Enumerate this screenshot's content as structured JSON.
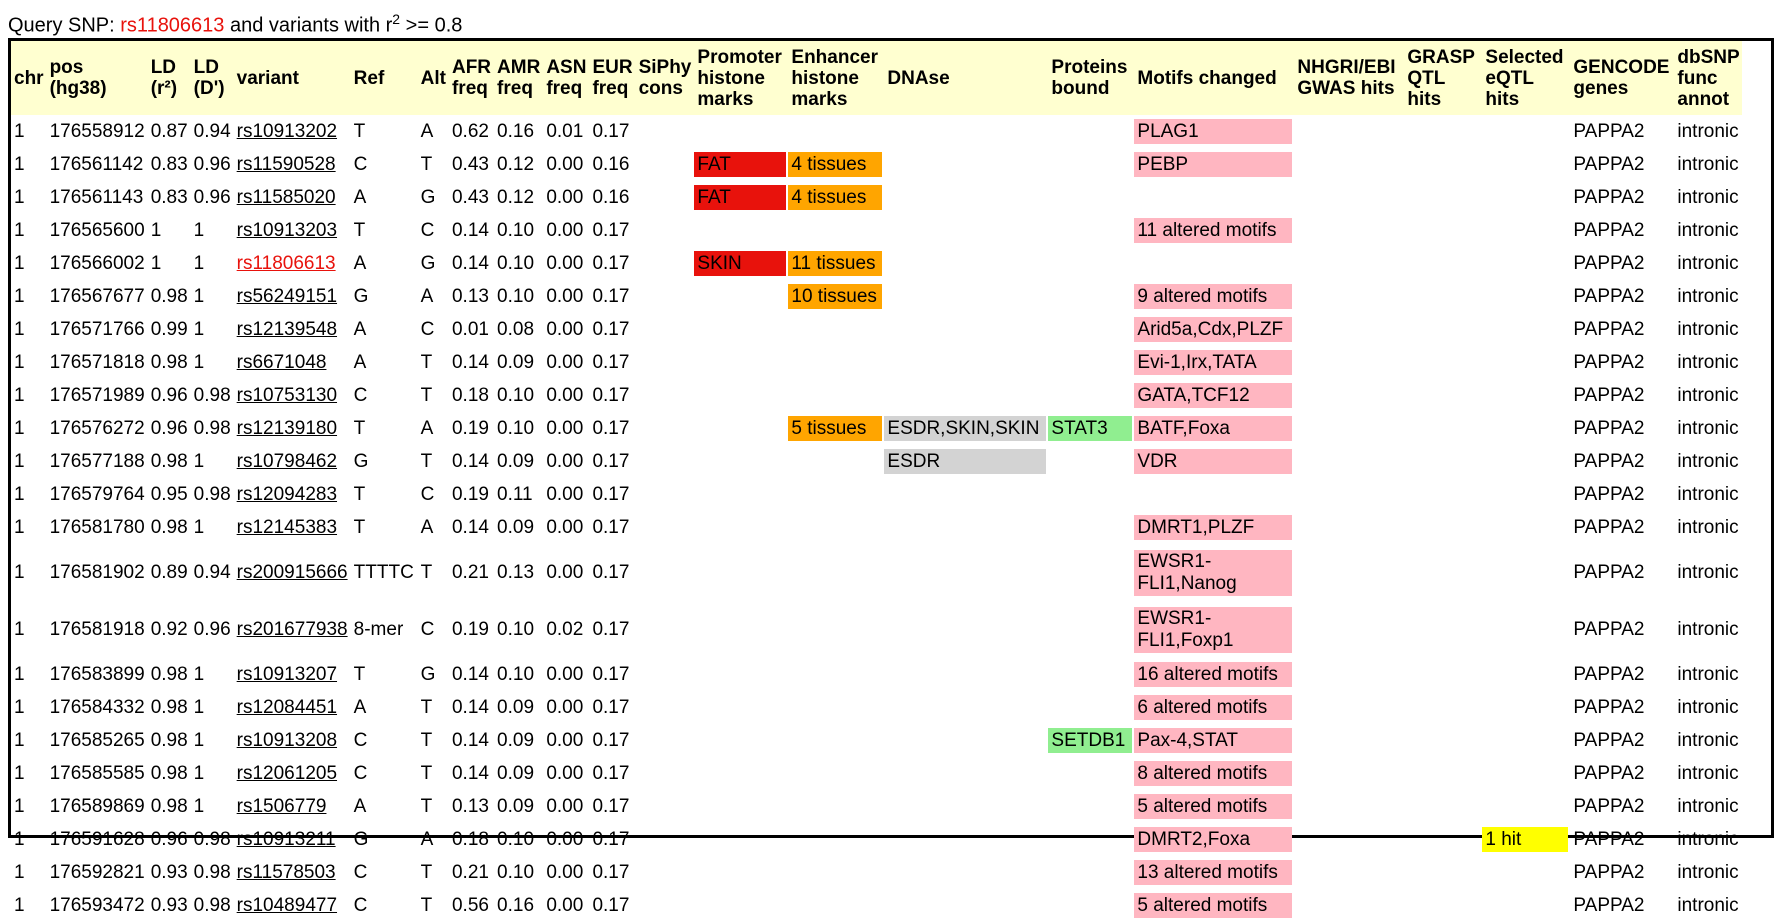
{
  "title": {
    "prefix": "Query SNP: ",
    "query": "rs11806613",
    "middle": " and variants with r",
    "sup": "2",
    "suffix": " >= 0.8"
  },
  "colors": {
    "red": "#e8120c",
    "orange": "#ffa500",
    "gray": "#d3d3d3",
    "green": "#90ee90",
    "pink": "#ffb6c1",
    "yellow": "#ffff00",
    "header_bg": "#ffffd0"
  },
  "headers": [
    "chr",
    "pos (hg38)",
    "LD (r²)",
    "LD (D')",
    "variant",
    "Ref",
    "Alt",
    "AFR freq",
    "AMR freq",
    "ASN freq",
    "EUR freq",
    "SiPhy cons",
    "Promoter histone marks",
    "Enhancer histone marks",
    "DNAse",
    "Proteins bound",
    "Motifs changed",
    "NHGRI/EBI GWAS hits",
    "GRASP QTL hits",
    "Selected eQTL hits",
    "GENCODE genes",
    "dbSNP func annot"
  ],
  "rows": [
    {
      "chr": "1",
      "pos": "176558912",
      "r2": "0.87",
      "d": "0.94",
      "variant": "rs10913202",
      "ref": "T",
      "alt": "A",
      "afr": "0.62",
      "amr": "0.16",
      "asn": "0.01",
      "eur": "0.17",
      "siphy": "",
      "promoter": "",
      "enhancer": "",
      "dnase": "",
      "proteins": "",
      "motifs": "PLAG1",
      "gwas": "",
      "grasp": "",
      "eqtl": "",
      "gene": "PAPPA2",
      "func": "intronic"
    },
    {
      "chr": "1",
      "pos": "176561142",
      "r2": "0.83",
      "d": "0.96",
      "variant": "rs11590528",
      "ref": "C",
      "alt": "T",
      "afr": "0.43",
      "amr": "0.12",
      "asn": "0.00",
      "eur": "0.16",
      "siphy": "",
      "promoter": "FAT",
      "enhancer": "4 tissues",
      "dnase": "",
      "proteins": "",
      "motifs": "PEBP",
      "gwas": "",
      "grasp": "",
      "eqtl": "",
      "gene": "PAPPA2",
      "func": "intronic"
    },
    {
      "chr": "1",
      "pos": "176561143",
      "r2": "0.83",
      "d": "0.96",
      "variant": "rs11585020",
      "ref": "A",
      "alt": "G",
      "afr": "0.43",
      "amr": "0.12",
      "asn": "0.00",
      "eur": "0.16",
      "siphy": "",
      "promoter": "FAT",
      "enhancer": "4 tissues",
      "dnase": "",
      "proteins": "",
      "motifs": "",
      "gwas": "",
      "grasp": "",
      "eqtl": "",
      "gene": "PAPPA2",
      "func": "intronic"
    },
    {
      "chr": "1",
      "pos": "176565600",
      "r2": "1",
      "d": "1",
      "variant": "rs10913203",
      "ref": "T",
      "alt": "C",
      "afr": "0.14",
      "amr": "0.10",
      "asn": "0.00",
      "eur": "0.17",
      "siphy": "",
      "promoter": "",
      "enhancer": "",
      "dnase": "",
      "proteins": "",
      "motifs": "11 altered motifs",
      "gwas": "",
      "grasp": "",
      "eqtl": "",
      "gene": "PAPPA2",
      "func": "intronic"
    },
    {
      "chr": "1",
      "pos": "176566002",
      "r2": "1",
      "d": "1",
      "variant": "rs11806613",
      "query": true,
      "ref": "A",
      "alt": "G",
      "afr": "0.14",
      "amr": "0.10",
      "asn": "0.00",
      "eur": "0.17",
      "siphy": "",
      "promoter": "SKIN",
      "enhancer": "11 tissues",
      "dnase": "",
      "proteins": "",
      "motifs": "",
      "gwas": "",
      "grasp": "",
      "eqtl": "",
      "gene": "PAPPA2",
      "func": "intronic"
    },
    {
      "chr": "1",
      "pos": "176567677",
      "r2": "0.98",
      "d": "1",
      "variant": "rs56249151",
      "ref": "G",
      "alt": "A",
      "afr": "0.13",
      "amr": "0.10",
      "asn": "0.00",
      "eur": "0.17",
      "siphy": "",
      "promoter": "",
      "enhancer": "10 tissues",
      "dnase": "",
      "proteins": "",
      "motifs": "9 altered motifs",
      "gwas": "",
      "grasp": "",
      "eqtl": "",
      "gene": "PAPPA2",
      "func": "intronic"
    },
    {
      "chr": "1",
      "pos": "176571766",
      "r2": "0.99",
      "d": "1",
      "variant": "rs12139548",
      "ref": "A",
      "alt": "C",
      "afr": "0.01",
      "amr": "0.08",
      "asn": "0.00",
      "eur": "0.17",
      "siphy": "",
      "promoter": "",
      "enhancer": "",
      "dnase": "",
      "proteins": "",
      "motifs": "Arid5a,Cdx,PLZF",
      "gwas": "",
      "grasp": "",
      "eqtl": "",
      "gene": "PAPPA2",
      "func": "intronic"
    },
    {
      "chr": "1",
      "pos": "176571818",
      "r2": "0.98",
      "d": "1",
      "variant": "rs6671048",
      "ref": "A",
      "alt": "T",
      "afr": "0.14",
      "amr": "0.09",
      "asn": "0.00",
      "eur": "0.17",
      "siphy": "",
      "promoter": "",
      "enhancer": "",
      "dnase": "",
      "proteins": "",
      "motifs": "Evi-1,Irx,TATA",
      "gwas": "",
      "grasp": "",
      "eqtl": "",
      "gene": "PAPPA2",
      "func": "intronic"
    },
    {
      "chr": "1",
      "pos": "176571989",
      "r2": "0.96",
      "d": "0.98",
      "variant": "rs10753130",
      "ref": "C",
      "alt": "T",
      "afr": "0.18",
      "amr": "0.10",
      "asn": "0.00",
      "eur": "0.17",
      "siphy": "",
      "promoter": "",
      "enhancer": "",
      "dnase": "",
      "proteins": "",
      "motifs": "GATA,TCF12",
      "gwas": "",
      "grasp": "",
      "eqtl": "",
      "gene": "PAPPA2",
      "func": "intronic"
    },
    {
      "chr": "1",
      "pos": "176576272",
      "r2": "0.96",
      "d": "0.98",
      "variant": "rs12139180",
      "ref": "T",
      "alt": "A",
      "afr": "0.19",
      "amr": "0.10",
      "asn": "0.00",
      "eur": "0.17",
      "siphy": "",
      "promoter": "",
      "enhancer": "5 tissues",
      "dnase": "ESDR,SKIN,SKIN",
      "proteins": "STAT3",
      "motifs": "BATF,Foxa",
      "gwas": "",
      "grasp": "",
      "eqtl": "",
      "gene": "PAPPA2",
      "func": "intronic"
    },
    {
      "chr": "1",
      "pos": "176577188",
      "r2": "0.98",
      "d": "1",
      "variant": "rs10798462",
      "ref": "G",
      "alt": "T",
      "afr": "0.14",
      "amr": "0.09",
      "asn": "0.00",
      "eur": "0.17",
      "siphy": "",
      "promoter": "",
      "enhancer": "",
      "dnase": "ESDR",
      "proteins": "",
      "motifs": "VDR",
      "gwas": "",
      "grasp": "",
      "eqtl": "",
      "gene": "PAPPA2",
      "func": "intronic"
    },
    {
      "chr": "1",
      "pos": "176579764",
      "r2": "0.95",
      "d": "0.98",
      "variant": "rs12094283",
      "ref": "T",
      "alt": "C",
      "afr": "0.19",
      "amr": "0.11",
      "asn": "0.00",
      "eur": "0.17",
      "siphy": "",
      "promoter": "",
      "enhancer": "",
      "dnase": "",
      "proteins": "",
      "motifs": "",
      "gwas": "",
      "grasp": "",
      "eqtl": "",
      "gene": "PAPPA2",
      "func": "intronic"
    },
    {
      "chr": "1",
      "pos": "176581780",
      "r2": "0.98",
      "d": "1",
      "variant": "rs12145383",
      "ref": "T",
      "alt": "A",
      "afr": "0.14",
      "amr": "0.09",
      "asn": "0.00",
      "eur": "0.17",
      "siphy": "",
      "promoter": "",
      "enhancer": "",
      "dnase": "",
      "proteins": "",
      "motifs": "DMRT1,PLZF",
      "gwas": "",
      "grasp": "",
      "eqtl": "",
      "gene": "PAPPA2",
      "func": "intronic"
    },
    {
      "chr": "1",
      "pos": "176581902",
      "r2": "0.89",
      "d": "0.94",
      "variant": "rs200915666",
      "ref": "TTTTC",
      "alt": "T",
      "afr": "0.21",
      "amr": "0.13",
      "asn": "0.00",
      "eur": "0.17",
      "siphy": "",
      "promoter": "",
      "enhancer": "",
      "dnase": "",
      "proteins": "",
      "motifs": "EWSR1-FLI1,Nanog",
      "gwas": "",
      "grasp": "",
      "eqtl": "",
      "gene": "PAPPA2",
      "func": "intronic",
      "tall": true
    },
    {
      "chr": "1",
      "pos": "176581918",
      "r2": "0.92",
      "d": "0.96",
      "variant": "rs201677938",
      "ref": "8-mer",
      "alt": "C",
      "afr": "0.19",
      "amr": "0.10",
      "asn": "0.02",
      "eur": "0.17",
      "siphy": "",
      "promoter": "",
      "enhancer": "",
      "dnase": "",
      "proteins": "",
      "motifs": "EWSR1-FLI1,Foxp1",
      "gwas": "",
      "grasp": "",
      "eqtl": "",
      "gene": "PAPPA2",
      "func": "intronic",
      "tall": true
    },
    {
      "chr": "1",
      "pos": "176583899",
      "r2": "0.98",
      "d": "1",
      "variant": "rs10913207",
      "ref": "T",
      "alt": "G",
      "afr": "0.14",
      "amr": "0.10",
      "asn": "0.00",
      "eur": "0.17",
      "siphy": "",
      "promoter": "",
      "enhancer": "",
      "dnase": "",
      "proteins": "",
      "motifs": "16 altered motifs",
      "gwas": "",
      "grasp": "",
      "eqtl": "",
      "gene": "PAPPA2",
      "func": "intronic"
    },
    {
      "chr": "1",
      "pos": "176584332",
      "r2": "0.98",
      "d": "1",
      "variant": "rs12084451",
      "ref": "A",
      "alt": "T",
      "afr": "0.14",
      "amr": "0.09",
      "asn": "0.00",
      "eur": "0.17",
      "siphy": "",
      "promoter": "",
      "enhancer": "",
      "dnase": "",
      "proteins": "",
      "motifs": "6 altered motifs",
      "gwas": "",
      "grasp": "",
      "eqtl": "",
      "gene": "PAPPA2",
      "func": "intronic"
    },
    {
      "chr": "1",
      "pos": "176585265",
      "r2": "0.98",
      "d": "1",
      "variant": "rs10913208",
      "ref": "C",
      "alt": "T",
      "afr": "0.14",
      "amr": "0.09",
      "asn": "0.00",
      "eur": "0.17",
      "siphy": "",
      "promoter": "",
      "enhancer": "",
      "dnase": "",
      "proteins": "SETDB1",
      "motifs": "Pax-4,STAT",
      "gwas": "",
      "grasp": "",
      "eqtl": "",
      "gene": "PAPPA2",
      "func": "intronic"
    },
    {
      "chr": "1",
      "pos": "176585585",
      "r2": "0.98",
      "d": "1",
      "variant": "rs12061205",
      "ref": "C",
      "alt": "T",
      "afr": "0.14",
      "amr": "0.09",
      "asn": "0.00",
      "eur": "0.17",
      "siphy": "",
      "promoter": "",
      "enhancer": "",
      "dnase": "",
      "proteins": "",
      "motifs": "8 altered motifs",
      "gwas": "",
      "grasp": "",
      "eqtl": "",
      "gene": "PAPPA2",
      "func": "intronic"
    },
    {
      "chr": "1",
      "pos": "176589869",
      "r2": "0.98",
      "d": "1",
      "variant": "rs1506779",
      "ref": "A",
      "alt": "T",
      "afr": "0.13",
      "amr": "0.09",
      "asn": "0.00",
      "eur": "0.17",
      "siphy": "",
      "promoter": "",
      "enhancer": "",
      "dnase": "",
      "proteins": "",
      "motifs": "5 altered motifs",
      "gwas": "",
      "grasp": "",
      "eqtl": "",
      "gene": "PAPPA2",
      "func": "intronic"
    },
    {
      "chr": "1",
      "pos": "176591628",
      "r2": "0.96",
      "d": "0.98",
      "variant": "rs10913211",
      "ref": "G",
      "alt": "A",
      "afr": "0.18",
      "amr": "0.10",
      "asn": "0.00",
      "eur": "0.17",
      "siphy": "",
      "promoter": "",
      "enhancer": "",
      "dnase": "",
      "proteins": "",
      "motifs": "DMRT2,Foxa",
      "gwas": "",
      "grasp": "",
      "eqtl": "1 hit",
      "gene": "PAPPA2",
      "func": "intronic"
    },
    {
      "chr": "1",
      "pos": "176592821",
      "r2": "0.93",
      "d": "0.98",
      "variant": "rs11578503",
      "ref": "C",
      "alt": "T",
      "afr": "0.21",
      "amr": "0.10",
      "asn": "0.00",
      "eur": "0.17",
      "siphy": "",
      "promoter": "",
      "enhancer": "",
      "dnase": "",
      "proteins": "",
      "motifs": "13 altered motifs",
      "gwas": "",
      "grasp": "",
      "eqtl": "",
      "gene": "PAPPA2",
      "func": "intronic"
    },
    {
      "chr": "1",
      "pos": "176593472",
      "r2": "0.93",
      "d": "0.98",
      "variant": "rs10489477",
      "ref": "C",
      "alt": "T",
      "afr": "0.56",
      "amr": "0.16",
      "asn": "0.00",
      "eur": "0.17",
      "siphy": "",
      "promoter": "",
      "enhancer": "",
      "dnase": "",
      "proteins": "",
      "motifs": "5 altered motifs",
      "gwas": "",
      "grasp": "",
      "eqtl": "",
      "gene": "PAPPA2",
      "func": "intronic"
    }
  ]
}
